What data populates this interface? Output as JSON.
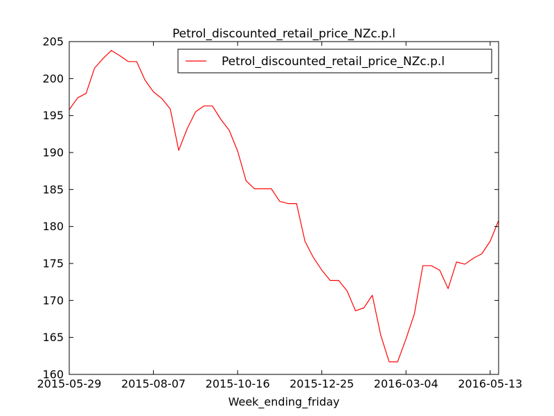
{
  "chart_data": {
    "type": "line",
    "title": "Petrol_discounted_retail_price_NZc.p.l",
    "xlabel": "Week_ending_friday",
    "ylabel": "",
    "legend_position": "top-right",
    "grid": false,
    "xlim": [
      "2015-05-29",
      "2016-05-20"
    ],
    "ylim": [
      160,
      205
    ],
    "x_tick_labels": [
      "2015-05-29",
      "2015-08-07",
      "2015-10-16",
      "2015-12-25",
      "2016-03-04",
      "2016-05-13"
    ],
    "y_tick_labels": [
      "160",
      "165",
      "170",
      "175",
      "180",
      "185",
      "190",
      "195",
      "200",
      "205"
    ],
    "series": [
      {
        "name": "Petrol_discounted_retail_price_NZc.p.l",
        "color": "#ff0000",
        "x": [
          "2015-05-29",
          "2015-06-05",
          "2015-06-12",
          "2015-06-19",
          "2015-06-26",
          "2015-07-03",
          "2015-07-10",
          "2015-07-17",
          "2015-07-24",
          "2015-07-31",
          "2015-08-07",
          "2015-08-14",
          "2015-08-21",
          "2015-08-28",
          "2015-09-04",
          "2015-09-11",
          "2015-09-18",
          "2015-09-25",
          "2015-10-02",
          "2015-10-09",
          "2015-10-16",
          "2015-10-23",
          "2015-10-30",
          "2015-11-06",
          "2015-11-13",
          "2015-11-20",
          "2015-11-27",
          "2015-12-04",
          "2015-12-11",
          "2015-12-18",
          "2015-12-25",
          "2016-01-01",
          "2016-01-08",
          "2016-01-15",
          "2016-01-22",
          "2016-01-29",
          "2016-02-05",
          "2016-02-12",
          "2016-02-19",
          "2016-02-26",
          "2016-03-04",
          "2016-03-11",
          "2016-03-18",
          "2016-03-25",
          "2016-04-01",
          "2016-04-08",
          "2016-04-15",
          "2016-04-22",
          "2016-04-29",
          "2016-05-06",
          "2016-05-13",
          "2016-05-20"
        ],
        "y": [
          195.8,
          197.4,
          198.0,
          201.4,
          202.7,
          203.8,
          203.1,
          202.3,
          202.3,
          199.8,
          198.2,
          197.3,
          195.9,
          190.3,
          193.2,
          195.5,
          196.3,
          196.3,
          194.5,
          193.0,
          190.2,
          186.2,
          185.1,
          185.1,
          185.1,
          183.4,
          183.1,
          183.1,
          178.0,
          175.8,
          174.1,
          172.7,
          172.7,
          171.3,
          168.6,
          169.0,
          170.7,
          165.3,
          161.7,
          161.7,
          164.8,
          168.2,
          174.7,
          174.7,
          174.1,
          171.6,
          175.2,
          174.9,
          175.7,
          176.3,
          178.0,
          180.8
        ]
      }
    ]
  }
}
